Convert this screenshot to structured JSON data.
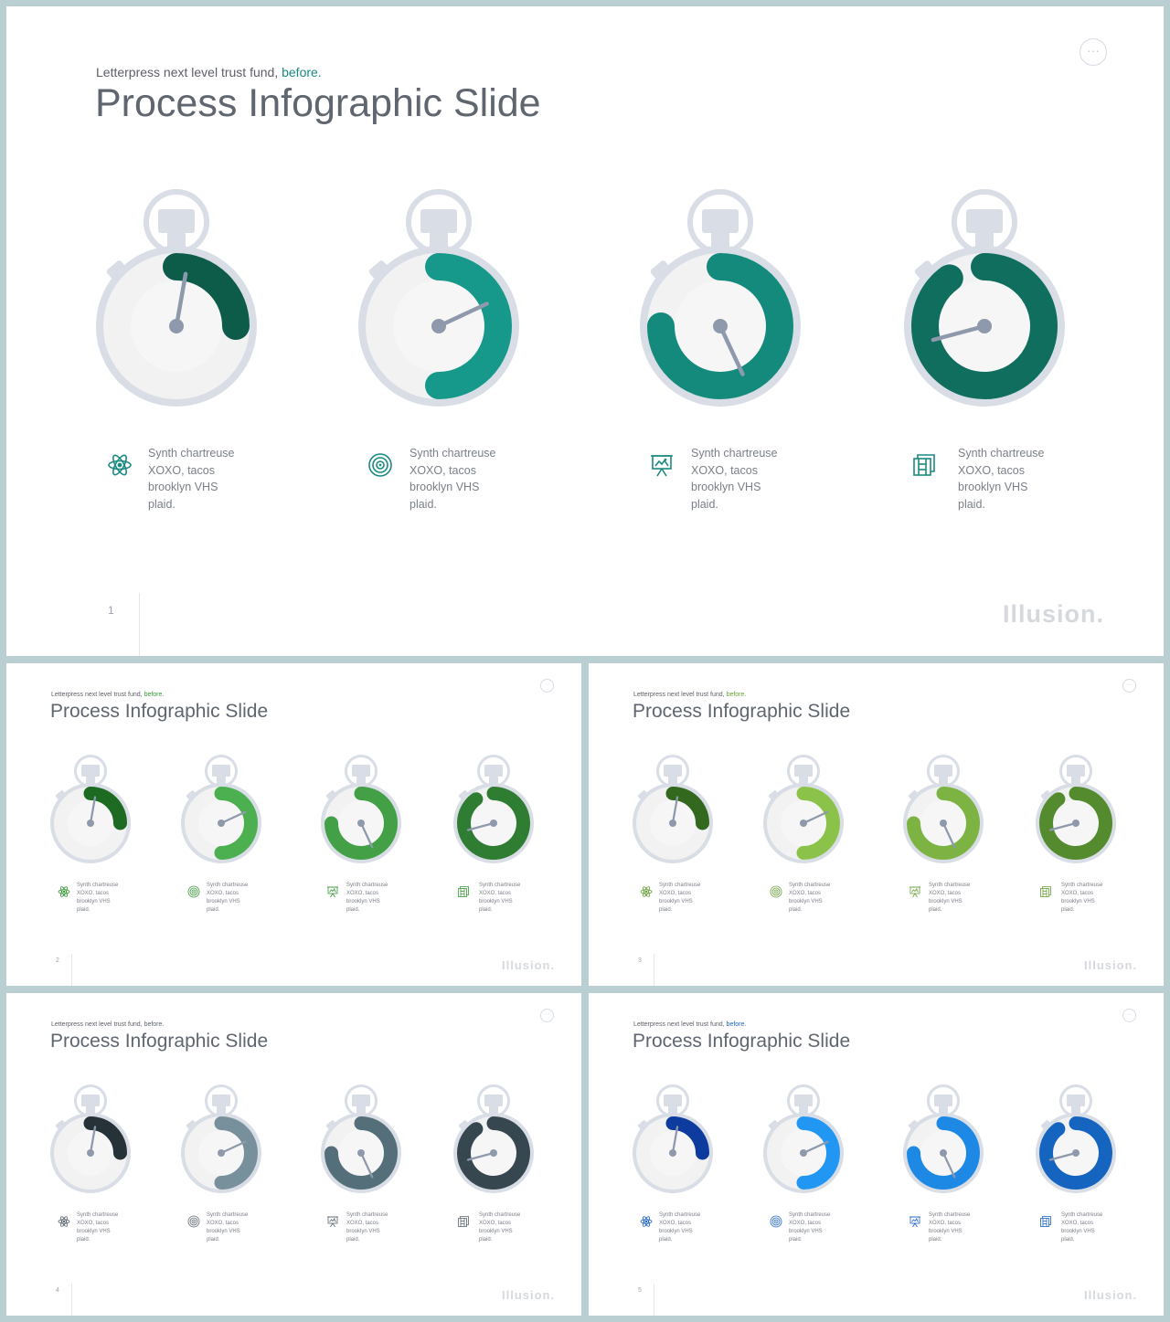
{
  "brand": "Illusion.",
  "menu_glyph": "···",
  "icons": [
    "atom-icon",
    "target-icon",
    "presentation-icon",
    "film-icon"
  ],
  "slides": [
    {
      "number": "1",
      "subtitle_prefix": "Letterpress next level trust fund,",
      "subtitle_accent": "before.",
      "title": "Process Infographic Slide",
      "accent_color": "#1a8a80",
      "colors": [
        "#0d5c4a",
        "#16998a",
        "#148a7c",
        "#0f6e5e"
      ],
      "fractions": [
        0.25,
        0.5,
        0.75,
        0.9
      ],
      "hands": [
        10,
        65,
        155,
        255
      ],
      "items": [
        {
          "lines": [
            "Synth chartreuse",
            "XOXO,  tacos",
            "brooklyn VHS",
            "plaid."
          ]
        },
        {
          "lines": [
            "Synth chartreuse",
            "XOXO,  tacos",
            "brooklyn VHS",
            "plaid."
          ]
        },
        {
          "lines": [
            "Synth chartreuse",
            "XOXO,  tacos",
            "brooklyn VHS",
            "plaid."
          ]
        },
        {
          "lines": [
            "Synth chartreuse",
            "XOXO,  tacos",
            "brooklyn VHS",
            "plaid."
          ]
        }
      ]
    },
    {
      "number": "2",
      "subtitle_prefix": "Letterpress next level trust fund,",
      "subtitle_accent": "before.",
      "title": "Process Infographic Slide",
      "accent_color": "#3a9a3a",
      "colors": [
        "#1d6b23",
        "#4caf50",
        "#43a047",
        "#2e7d32"
      ],
      "fractions": [
        0.25,
        0.5,
        0.75,
        0.9
      ],
      "hands": [
        10,
        65,
        155,
        255
      ],
      "items": [
        {
          "lines": [
            "Synth chartreuse",
            "XOXO,  tacos",
            "brooklyn VHS",
            "plaid."
          ]
        },
        {
          "lines": [
            "Synth chartreuse",
            "XOXO,  tacos",
            "brooklyn VHS",
            "plaid."
          ]
        },
        {
          "lines": [
            "Synth chartreuse",
            "XOXO,  tacos",
            "brooklyn VHS",
            "plaid."
          ]
        },
        {
          "lines": [
            "Synth chartreuse",
            "XOXO,  tacos",
            "brooklyn VHS",
            "plaid."
          ]
        }
      ]
    },
    {
      "number": "3",
      "subtitle_prefix": "Letterpress next level trust fund,",
      "subtitle_accent": "before.",
      "title": "Process Infographic Slide",
      "accent_color": "#6aa03a",
      "colors": [
        "#33691e",
        "#8bc34a",
        "#7cb342",
        "#558b2f"
      ],
      "fractions": [
        0.25,
        0.5,
        0.75,
        0.9
      ],
      "hands": [
        10,
        65,
        155,
        255
      ],
      "items": [
        {
          "lines": [
            "Synth chartreuse",
            "XOXO,  tacos",
            "brooklyn VHS",
            "plaid."
          ]
        },
        {
          "lines": [
            "Synth chartreuse",
            "XOXO,  tacos",
            "brooklyn VHS",
            "plaid."
          ]
        },
        {
          "lines": [
            "Synth chartreuse",
            "XOXO,  tacos",
            "brooklyn VHS",
            "plaid."
          ]
        },
        {
          "lines": [
            "Synth chartreuse",
            "XOXO,  tacos",
            "brooklyn VHS",
            "plaid."
          ]
        }
      ]
    },
    {
      "number": "4",
      "subtitle_prefix": "Letterpress next level trust fund,",
      "subtitle_accent": "before.",
      "title": "Process Infographic Slide",
      "accent_color": "#5b6670",
      "colors": [
        "#263238",
        "#78909c",
        "#546e7a",
        "#37474f"
      ],
      "fractions": [
        0.25,
        0.5,
        0.75,
        0.9
      ],
      "hands": [
        10,
        65,
        155,
        255
      ],
      "items": [
        {
          "lines": [
            "Synth chartreuse",
            "XOXO,  tacos",
            "brooklyn VHS",
            "plaid."
          ]
        },
        {
          "lines": [
            "Synth chartreuse",
            "XOXO,  tacos",
            "brooklyn VHS",
            "plaid."
          ]
        },
        {
          "lines": [
            "Synth chartreuse",
            "XOXO,  tacos",
            "brooklyn VHS",
            "plaid."
          ]
        },
        {
          "lines": [
            "Synth chartreuse",
            "XOXO,  tacos",
            "brooklyn VHS",
            "plaid."
          ]
        }
      ]
    },
    {
      "number": "5",
      "subtitle_prefix": "Letterpress next level trust fund,",
      "subtitle_accent": "before.",
      "title": "Process Infographic Slide",
      "accent_color": "#1e63c8",
      "colors": [
        "#0d3c9e",
        "#2196f3",
        "#1e88e5",
        "#1565c0"
      ],
      "fractions": [
        0.25,
        0.5,
        0.75,
        0.9
      ],
      "hands": [
        10,
        65,
        155,
        255
      ],
      "items": [
        {
          "lines": [
            "Synth chartreuse",
            "XOXO,  tacos",
            "brooklyn VHS",
            "plaid."
          ]
        },
        {
          "lines": [
            "Synth chartreuse",
            "XOXO,  tacos",
            "brooklyn VHS",
            "plaid."
          ]
        },
        {
          "lines": [
            "Synth chartreuse",
            "XOXO,  tacos",
            "brooklyn VHS",
            "plaid."
          ]
        },
        {
          "lines": [
            "Synth chartreuse",
            "XOXO,  tacos",
            "brooklyn VHS",
            "plaid."
          ]
        }
      ]
    }
  ]
}
